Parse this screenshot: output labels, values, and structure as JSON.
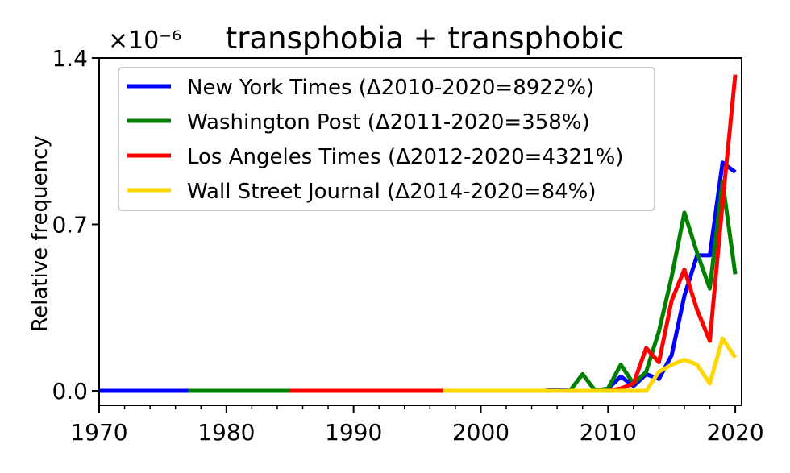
{
  "chart_data": {
    "type": "line",
    "title": "transphobia + transphobic",
    "ylabel": "Relative frequency",
    "xlabel": "",
    "y_multiplier": "×10⁻⁶",
    "xlim": [
      1970,
      2020.5
    ],
    "ylim": [
      0,
      1.4
    ],
    "x_ticks": [
      1970,
      1980,
      1990,
      2000,
      2010,
      2020
    ],
    "y_ticks": [
      {
        "value": 0.0,
        "label": "0.0"
      },
      {
        "value": 0.7,
        "label": "0.7"
      },
      {
        "value": 1.4,
        "label": "1.4"
      }
    ],
    "grid": false,
    "legend_position": "top-left",
    "series": [
      {
        "name": "New York Times (Δ2010-2020=8922%)",
        "color": "#0000ff",
        "x": [
          1970,
          1971,
          1972,
          1973,
          1974,
          1975,
          1976,
          1977,
          1978,
          1979,
          1980,
          1981,
          1982,
          1983,
          1984,
          1985,
          1986,
          1987,
          1988,
          1989,
          1990,
          1991,
          1992,
          1993,
          1994,
          1995,
          1996,
          1997,
          1998,
          1999,
          2000,
          2001,
          2002,
          2003,
          2004,
          2005,
          2006,
          2007,
          2008,
          2009,
          2010,
          2011,
          2012,
          2013,
          2014,
          2015,
          2016,
          2017,
          2018,
          2019,
          2020
        ],
        "y": [
          0,
          0,
          0,
          0,
          0,
          0,
          0,
          0,
          0,
          0,
          0,
          0,
          0,
          0,
          0,
          0,
          0,
          0,
          0,
          0,
          0,
          0,
          0,
          0,
          0,
          0,
          0,
          0,
          0,
          0,
          0,
          0,
          0,
          0,
          0,
          0,
          0.005,
          0,
          0,
          0,
          0.01,
          0.06,
          0.02,
          0.07,
          0.05,
          0.15,
          0.4,
          0.57,
          0.57,
          0.96,
          0.92
        ]
      },
      {
        "name": "Washington Post (Δ2011-2020=358%)",
        "color": "#008000",
        "x": [
          1977,
          1978,
          1979,
          1980,
          1981,
          1982,
          1983,
          1984,
          1985,
          1986,
          1987,
          1988,
          1989,
          1990,
          1991,
          1992,
          1993,
          1994,
          1995,
          1996,
          1997,
          1998,
          1999,
          2000,
          2001,
          2002,
          2003,
          2004,
          2005,
          2006,
          2007,
          2008,
          2009,
          2010,
          2011,
          2012,
          2013,
          2014,
          2015,
          2016,
          2017,
          2018,
          2019,
          2020
        ],
        "y": [
          0,
          0,
          0,
          0,
          0,
          0,
          0,
          0,
          0,
          0,
          0,
          0,
          0,
          0,
          0,
          0,
          0,
          0,
          0,
          0,
          0,
          0,
          0,
          0,
          0,
          0,
          0,
          0,
          0,
          0,
          0,
          0.07,
          0,
          0.01,
          0.11,
          0.03,
          0.08,
          0.25,
          0.48,
          0.75,
          0.58,
          0.43,
          0.88,
          0.49
        ]
      },
      {
        "name": "Los Angeles Times (Δ2012-2020=4321%)",
        "color": "#ff0000",
        "x": [
          1985,
          1986,
          1987,
          1988,
          1989,
          1990,
          1991,
          1992,
          1993,
          1994,
          1995,
          1996,
          1997,
          1998,
          1999,
          2000,
          2001,
          2002,
          2003,
          2004,
          2005,
          2006,
          2007,
          2008,
          2009,
          2010,
          2011,
          2012,
          2013,
          2014,
          2015,
          2016,
          2017,
          2018,
          2019,
          2020
        ],
        "y": [
          0,
          0,
          0,
          0,
          0,
          0,
          0,
          0,
          0,
          0,
          0,
          0,
          0,
          0,
          0,
          0,
          0,
          0,
          0,
          0,
          0,
          0,
          0,
          0,
          0,
          0,
          0.01,
          0.03,
          0.18,
          0.12,
          0.38,
          0.51,
          0.34,
          0.21,
          0.79,
          1.33
        ]
      },
      {
        "name": "Wall Street Journal (Δ2014-2020=84%)",
        "color": "#ffd700",
        "x": [
          1997,
          1998,
          1999,
          2000,
          2001,
          2002,
          2003,
          2004,
          2005,
          2006,
          2007,
          2008,
          2009,
          2010,
          2011,
          2012,
          2013,
          2014,
          2015,
          2016,
          2017,
          2018,
          2019,
          2020
        ],
        "y": [
          0,
          0,
          0,
          0,
          0,
          0,
          0,
          0,
          0,
          0,
          0,
          0,
          0,
          0,
          0,
          0,
          0,
          0.08,
          0.11,
          0.13,
          0.11,
          0.03,
          0.22,
          0.14
        ]
      }
    ]
  }
}
